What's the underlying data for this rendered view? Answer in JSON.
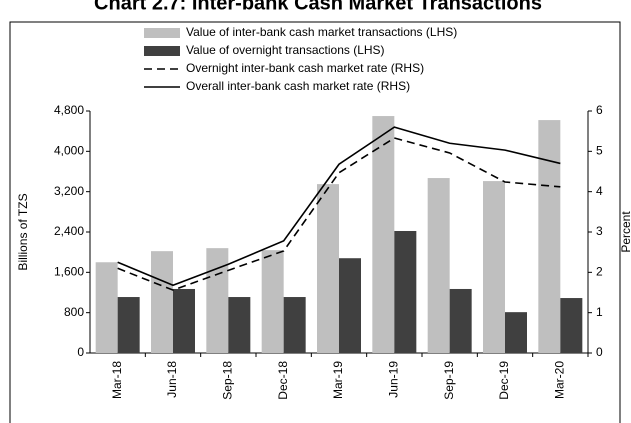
{
  "chart_data": {
    "type": "bar_line",
    "title": "Chart 2.7: Inter-bank Cash Market Transactions",
    "y_label": "Billions of TZS",
    "y2_label": "Percent",
    "categories": [
      "Mar-18",
      "Jun-18",
      "Sep-18",
      "Dec-18",
      "Mar-19",
      "Jun-19",
      "Sep-19",
      "Dec-19",
      "Mar-20"
    ],
    "series": [
      {
        "name": "Value of inter-bank cash market transactions (LHS)",
        "kind": "bar",
        "color": "#bfbfbf",
        "values": [
          1800,
          2020,
          2080,
          2040,
          3350,
          4700,
          3470,
          3410,
          4620
        ]
      },
      {
        "name": "Value of overnight transactions (LHS)",
        "kind": "bar",
        "color": "#404040",
        "values": [
          1110,
          1270,
          1110,
          1110,
          1880,
          2420,
          1270,
          810,
          1090
        ]
      },
      {
        "name": "Overnight inter-bank cash market rate (RHS)",
        "kind": "line",
        "dash": true,
        "axis": "y2",
        "color": "#000000",
        "values": [
          2.1,
          1.56,
          2.05,
          2.53,
          4.47,
          5.33,
          4.96,
          4.24,
          4.12
        ]
      },
      {
        "name": "Overall inter-bank cash market rate (RHS)",
        "kind": "line",
        "dash": false,
        "axis": "y2",
        "color": "#000000",
        "values": [
          2.25,
          1.68,
          2.2,
          2.78,
          4.68,
          5.6,
          5.2,
          5.03,
          4.7
        ]
      }
    ],
    "ylim": [
      0,
      4800
    ],
    "yticks": [
      0,
      {
        "value": 800,
        "label": "800"
      },
      {
        "value": 1600,
        "label": "1,600"
      },
      {
        "value": 2400,
        "label": "2,400"
      },
      {
        "value": 3200,
        "label": "3,200"
      },
      {
        "value": 4000,
        "label": "4,000"
      },
      {
        "value": 4800,
        "label": "4,800"
      }
    ],
    "y2lim": [
      0,
      6
    ],
    "y2ticks": [
      0,
      1,
      2,
      3,
      4,
      5,
      6
    ],
    "grid": false
  }
}
